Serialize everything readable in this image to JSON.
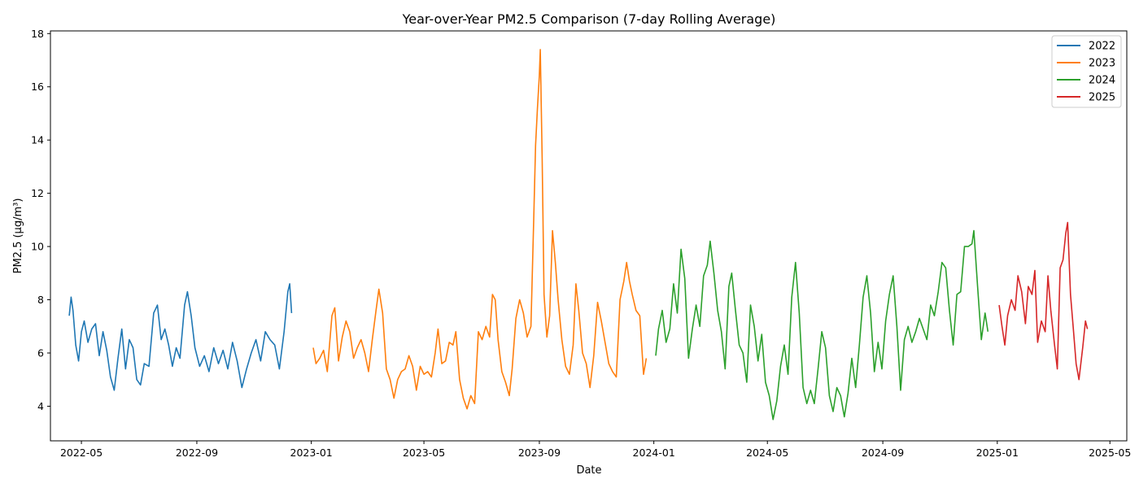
{
  "chart_data": {
    "type": "line",
    "title": "Year-over-Year PM2.5 Comparison (7-day Rolling Average)",
    "xlabel": "Date",
    "ylabel": "PM2.5 (µg/m³)",
    "xlim": [
      "2022-03-29",
      "2025-05-19"
    ],
    "ylim": [
      2.7,
      18.1
    ],
    "yticks": [
      4,
      6,
      8,
      10,
      12,
      14,
      16,
      18
    ],
    "xticks": [
      "2022-05",
      "2022-09",
      "2023-01",
      "2023-05",
      "2023-09",
      "2024-01",
      "2024-05",
      "2024-09",
      "2025-01",
      "2025-05"
    ],
    "xtick_dates": [
      "2022-05-01",
      "2022-09-01",
      "2023-01-01",
      "2023-05-01",
      "2023-09-01",
      "2024-01-01",
      "2024-05-01",
      "2024-09-01",
      "2025-01-01",
      "2025-05-01"
    ],
    "grid": false,
    "legend_position": "top-right",
    "series": [
      {
        "name": "2022",
        "color": "#1f77b4",
        "points": [
          [
            "2022-04-18",
            7.4
          ],
          [
            "2022-04-20",
            8.1
          ],
          [
            "2022-04-22",
            7.6
          ],
          [
            "2022-04-25",
            6.3
          ],
          [
            "2022-04-28",
            5.7
          ],
          [
            "2022-05-01",
            6.8
          ],
          [
            "2022-05-04",
            7.2
          ],
          [
            "2022-05-08",
            6.4
          ],
          [
            "2022-05-12",
            6.9
          ],
          [
            "2022-05-16",
            7.1
          ],
          [
            "2022-05-20",
            5.9
          ],
          [
            "2022-05-24",
            6.8
          ],
          [
            "2022-05-28",
            6.1
          ],
          [
            "2022-06-01",
            5.1
          ],
          [
            "2022-06-05",
            4.6
          ],
          [
            "2022-06-09",
            5.8
          ],
          [
            "2022-06-13",
            6.9
          ],
          [
            "2022-06-17",
            5.4
          ],
          [
            "2022-06-21",
            6.5
          ],
          [
            "2022-06-25",
            6.2
          ],
          [
            "2022-06-29",
            5.0
          ],
          [
            "2022-07-03",
            4.8
          ],
          [
            "2022-07-07",
            5.6
          ],
          [
            "2022-07-12",
            5.5
          ],
          [
            "2022-07-17",
            7.5
          ],
          [
            "2022-07-21",
            7.8
          ],
          [
            "2022-07-25",
            6.5
          ],
          [
            "2022-07-29",
            6.9
          ],
          [
            "2022-08-02",
            6.3
          ],
          [
            "2022-08-06",
            5.5
          ],
          [
            "2022-08-10",
            6.2
          ],
          [
            "2022-08-14",
            5.8
          ],
          [
            "2022-08-19",
            7.8
          ],
          [
            "2022-08-22",
            8.3
          ],
          [
            "2022-08-26",
            7.4
          ],
          [
            "2022-08-30",
            6.2
          ],
          [
            "2022-09-04",
            5.5
          ],
          [
            "2022-09-09",
            5.9
          ],
          [
            "2022-09-14",
            5.3
          ],
          [
            "2022-09-19",
            6.2
          ],
          [
            "2022-09-24",
            5.6
          ],
          [
            "2022-09-29",
            6.1
          ],
          [
            "2022-10-04",
            5.4
          ],
          [
            "2022-10-09",
            6.4
          ],
          [
            "2022-10-14",
            5.7
          ],
          [
            "2022-10-19",
            4.7
          ],
          [
            "2022-10-24",
            5.4
          ],
          [
            "2022-10-29",
            6.0
          ],
          [
            "2022-11-03",
            6.5
          ],
          [
            "2022-11-08",
            5.7
          ],
          [
            "2022-11-13",
            6.8
          ],
          [
            "2022-11-18",
            6.5
          ],
          [
            "2022-11-23",
            6.3
          ],
          [
            "2022-11-28",
            5.4
          ],
          [
            "2022-12-03",
            6.8
          ],
          [
            "2022-12-07",
            8.3
          ],
          [
            "2022-12-09",
            8.6
          ],
          [
            "2022-12-11",
            7.5
          ]
        ]
      },
      {
        "name": "2023",
        "color": "#ff7f0e",
        "points": [
          [
            "2023-01-03",
            6.2
          ],
          [
            "2023-01-06",
            5.6
          ],
          [
            "2023-01-10",
            5.8
          ],
          [
            "2023-01-14",
            6.1
          ],
          [
            "2023-01-18",
            5.3
          ],
          [
            "2023-01-23",
            7.4
          ],
          [
            "2023-01-26",
            7.7
          ],
          [
            "2023-01-30",
            5.7
          ],
          [
            "2023-02-03",
            6.6
          ],
          [
            "2023-02-07",
            7.2
          ],
          [
            "2023-02-11",
            6.8
          ],
          [
            "2023-02-15",
            5.8
          ],
          [
            "2023-02-19",
            6.2
          ],
          [
            "2023-02-23",
            6.5
          ],
          [
            "2023-02-27",
            6.0
          ],
          [
            "2023-03-03",
            5.3
          ],
          [
            "2023-03-07",
            6.5
          ],
          [
            "2023-03-11",
            7.6
          ],
          [
            "2023-03-14",
            8.4
          ],
          [
            "2023-03-18",
            7.5
          ],
          [
            "2023-03-22",
            5.4
          ],
          [
            "2023-03-26",
            5.0
          ],
          [
            "2023-03-30",
            4.3
          ],
          [
            "2023-04-03",
            5.0
          ],
          [
            "2023-04-07",
            5.3
          ],
          [
            "2023-04-11",
            5.4
          ],
          [
            "2023-04-15",
            5.9
          ],
          [
            "2023-04-19",
            5.5
          ],
          [
            "2023-04-23",
            4.6
          ],
          [
            "2023-04-27",
            5.5
          ],
          [
            "2023-05-01",
            5.2
          ],
          [
            "2023-05-05",
            5.3
          ],
          [
            "2023-05-09",
            5.1
          ],
          [
            "2023-05-13",
            6.0
          ],
          [
            "2023-05-16",
            6.9
          ],
          [
            "2023-05-20",
            5.6
          ],
          [
            "2023-05-24",
            5.7
          ],
          [
            "2023-05-28",
            6.4
          ],
          [
            "2023-06-01",
            6.3
          ],
          [
            "2023-06-04",
            6.8
          ],
          [
            "2023-06-08",
            5.0
          ],
          [
            "2023-06-12",
            4.3
          ],
          [
            "2023-06-16",
            3.9
          ],
          [
            "2023-06-20",
            4.4
          ],
          [
            "2023-06-24",
            4.1
          ],
          [
            "2023-06-28",
            6.8
          ],
          [
            "2023-07-02",
            6.5
          ],
          [
            "2023-07-06",
            7.0
          ],
          [
            "2023-07-10",
            6.6
          ],
          [
            "2023-07-13",
            8.2
          ],
          [
            "2023-07-16",
            8.0
          ],
          [
            "2023-07-19",
            6.5
          ],
          [
            "2023-07-23",
            5.3
          ],
          [
            "2023-07-27",
            4.9
          ],
          [
            "2023-07-31",
            4.4
          ],
          [
            "2023-08-03",
            5.4
          ],
          [
            "2023-08-07",
            7.3
          ],
          [
            "2023-08-11",
            8.0
          ],
          [
            "2023-08-15",
            7.5
          ],
          [
            "2023-08-19",
            6.6
          ],
          [
            "2023-08-23",
            7.0
          ],
          [
            "2023-08-26",
            11.0
          ],
          [
            "2023-08-28",
            13.8
          ],
          [
            "2023-08-30",
            15.2
          ],
          [
            "2023-09-01",
            16.4
          ],
          [
            "2023-09-02",
            17.4
          ],
          [
            "2023-09-04",
            13.3
          ],
          [
            "2023-09-06",
            8.2
          ],
          [
            "2023-09-09",
            6.6
          ],
          [
            "2023-09-12",
            7.4
          ],
          [
            "2023-09-15",
            10.6
          ],
          [
            "2023-09-18",
            9.4
          ],
          [
            "2023-09-21",
            8.0
          ],
          [
            "2023-09-25",
            6.5
          ],
          [
            "2023-09-29",
            5.5
          ],
          [
            "2023-10-03",
            5.2
          ],
          [
            "2023-10-07",
            6.3
          ],
          [
            "2023-10-10",
            8.6
          ],
          [
            "2023-10-13",
            7.6
          ],
          [
            "2023-10-17",
            6.0
          ],
          [
            "2023-10-21",
            5.6
          ],
          [
            "2023-10-25",
            4.7
          ],
          [
            "2023-10-29",
            5.9
          ],
          [
            "2023-11-02",
            7.9
          ],
          [
            "2023-11-06",
            7.2
          ],
          [
            "2023-11-10",
            6.4
          ],
          [
            "2023-11-14",
            5.6
          ],
          [
            "2023-11-18",
            5.3
          ],
          [
            "2023-11-22",
            5.1
          ],
          [
            "2023-11-26",
            8.0
          ],
          [
            "2023-11-30",
            8.7
          ],
          [
            "2023-12-03",
            9.4
          ],
          [
            "2023-12-06",
            8.7
          ],
          [
            "2023-12-09",
            8.2
          ],
          [
            "2023-12-13",
            7.6
          ],
          [
            "2023-12-17",
            7.4
          ],
          [
            "2023-12-21",
            5.2
          ],
          [
            "2023-12-24",
            5.8
          ]
        ]
      },
      {
        "name": "2024",
        "color": "#2ca02c",
        "points": [
          [
            "2024-01-03",
            5.9
          ],
          [
            "2024-01-06",
            6.9
          ],
          [
            "2024-01-10",
            7.6
          ],
          [
            "2024-01-14",
            6.4
          ],
          [
            "2024-01-18",
            6.9
          ],
          [
            "2024-01-22",
            8.6
          ],
          [
            "2024-01-26",
            7.5
          ],
          [
            "2024-01-30",
            9.9
          ],
          [
            "2024-02-03",
            8.8
          ],
          [
            "2024-02-07",
            5.8
          ],
          [
            "2024-02-11",
            6.9
          ],
          [
            "2024-02-15",
            7.8
          ],
          [
            "2024-02-19",
            7.0
          ],
          [
            "2024-02-23",
            8.9
          ],
          [
            "2024-02-27",
            9.3
          ],
          [
            "2024-03-01",
            10.2
          ],
          [
            "2024-03-05",
            9.0
          ],
          [
            "2024-03-09",
            7.6
          ],
          [
            "2024-03-13",
            6.8
          ],
          [
            "2024-03-17",
            5.4
          ],
          [
            "2024-03-21",
            8.5
          ],
          [
            "2024-03-24",
            9.0
          ],
          [
            "2024-03-28",
            7.6
          ],
          [
            "2024-04-01",
            6.3
          ],
          [
            "2024-04-05",
            6.0
          ],
          [
            "2024-04-09",
            4.9
          ],
          [
            "2024-04-13",
            7.8
          ],
          [
            "2024-04-17",
            7.0
          ],
          [
            "2024-04-21",
            5.7
          ],
          [
            "2024-04-25",
            6.7
          ],
          [
            "2024-04-29",
            4.9
          ],
          [
            "2024-05-03",
            4.4
          ],
          [
            "2024-05-07",
            3.5
          ],
          [
            "2024-05-11",
            4.2
          ],
          [
            "2024-05-15",
            5.5
          ],
          [
            "2024-05-19",
            6.3
          ],
          [
            "2024-05-23",
            5.2
          ],
          [
            "2024-05-27",
            8.1
          ],
          [
            "2024-05-31",
            9.4
          ],
          [
            "2024-06-04",
            7.5
          ],
          [
            "2024-06-08",
            4.7
          ],
          [
            "2024-06-12",
            4.1
          ],
          [
            "2024-06-16",
            4.6
          ],
          [
            "2024-06-20",
            4.1
          ],
          [
            "2024-06-24",
            5.4
          ],
          [
            "2024-06-28",
            6.8
          ],
          [
            "2024-07-02",
            6.2
          ],
          [
            "2024-07-06",
            4.4
          ],
          [
            "2024-07-10",
            3.8
          ],
          [
            "2024-07-14",
            4.7
          ],
          [
            "2024-07-18",
            4.4
          ],
          [
            "2024-07-22",
            3.6
          ],
          [
            "2024-07-26",
            4.5
          ],
          [
            "2024-07-30",
            5.8
          ],
          [
            "2024-08-03",
            4.7
          ],
          [
            "2024-08-07",
            6.3
          ],
          [
            "2024-08-11",
            8.1
          ],
          [
            "2024-08-15",
            8.9
          ],
          [
            "2024-08-19",
            7.5
          ],
          [
            "2024-08-23",
            5.3
          ],
          [
            "2024-08-27",
            6.4
          ],
          [
            "2024-08-31",
            5.4
          ],
          [
            "2024-09-04",
            7.2
          ],
          [
            "2024-09-08",
            8.2
          ],
          [
            "2024-09-12",
            8.9
          ],
          [
            "2024-09-16",
            7.0
          ],
          [
            "2024-09-20",
            4.6
          ],
          [
            "2024-09-24",
            6.5
          ],
          [
            "2024-09-28",
            7.0
          ],
          [
            "2024-10-02",
            6.4
          ],
          [
            "2024-10-06",
            6.8
          ],
          [
            "2024-10-10",
            7.3
          ],
          [
            "2024-10-14",
            6.9
          ],
          [
            "2024-10-18",
            6.5
          ],
          [
            "2024-10-22",
            7.8
          ],
          [
            "2024-10-26",
            7.4
          ],
          [
            "2024-10-30",
            8.3
          ],
          [
            "2024-11-03",
            9.4
          ],
          [
            "2024-11-07",
            9.2
          ],
          [
            "2024-11-11",
            7.6
          ],
          [
            "2024-11-15",
            6.3
          ],
          [
            "2024-11-19",
            8.2
          ],
          [
            "2024-11-23",
            8.3
          ],
          [
            "2024-11-27",
            10.0
          ],
          [
            "2024-12-01",
            10.0
          ],
          [
            "2024-12-05",
            10.1
          ],
          [
            "2024-12-07",
            10.6
          ],
          [
            "2024-12-11",
            8.5
          ],
          [
            "2024-12-15",
            6.5
          ],
          [
            "2024-12-19",
            7.5
          ],
          [
            "2024-12-22",
            6.8
          ]
        ]
      },
      {
        "name": "2025",
        "color": "#d62728",
        "points": [
          [
            "2025-01-03",
            7.8
          ],
          [
            "2025-01-06",
            7.0
          ],
          [
            "2025-01-09",
            6.3
          ],
          [
            "2025-01-12",
            7.4
          ],
          [
            "2025-01-16",
            8.0
          ],
          [
            "2025-01-20",
            7.6
          ],
          [
            "2025-01-23",
            8.9
          ],
          [
            "2025-01-27",
            8.3
          ],
          [
            "2025-01-31",
            7.1
          ],
          [
            "2025-02-03",
            8.5
          ],
          [
            "2025-02-07",
            8.2
          ],
          [
            "2025-02-10",
            9.1
          ],
          [
            "2025-02-13",
            6.4
          ],
          [
            "2025-02-17",
            7.2
          ],
          [
            "2025-02-21",
            6.8
          ],
          [
            "2025-02-24",
            8.9
          ],
          [
            "2025-02-27",
            7.6
          ],
          [
            "2025-03-03",
            6.3
          ],
          [
            "2025-03-06",
            5.4
          ],
          [
            "2025-03-09",
            9.2
          ],
          [
            "2025-03-12",
            9.5
          ],
          [
            "2025-03-15",
            10.5
          ],
          [
            "2025-03-17",
            10.9
          ],
          [
            "2025-03-20",
            8.2
          ],
          [
            "2025-03-23",
            6.9
          ],
          [
            "2025-03-26",
            5.6
          ],
          [
            "2025-03-29",
            5.0
          ],
          [
            "2025-04-02",
            6.2
          ],
          [
            "2025-04-05",
            7.2
          ],
          [
            "2025-04-07",
            6.9
          ]
        ]
      }
    ]
  }
}
